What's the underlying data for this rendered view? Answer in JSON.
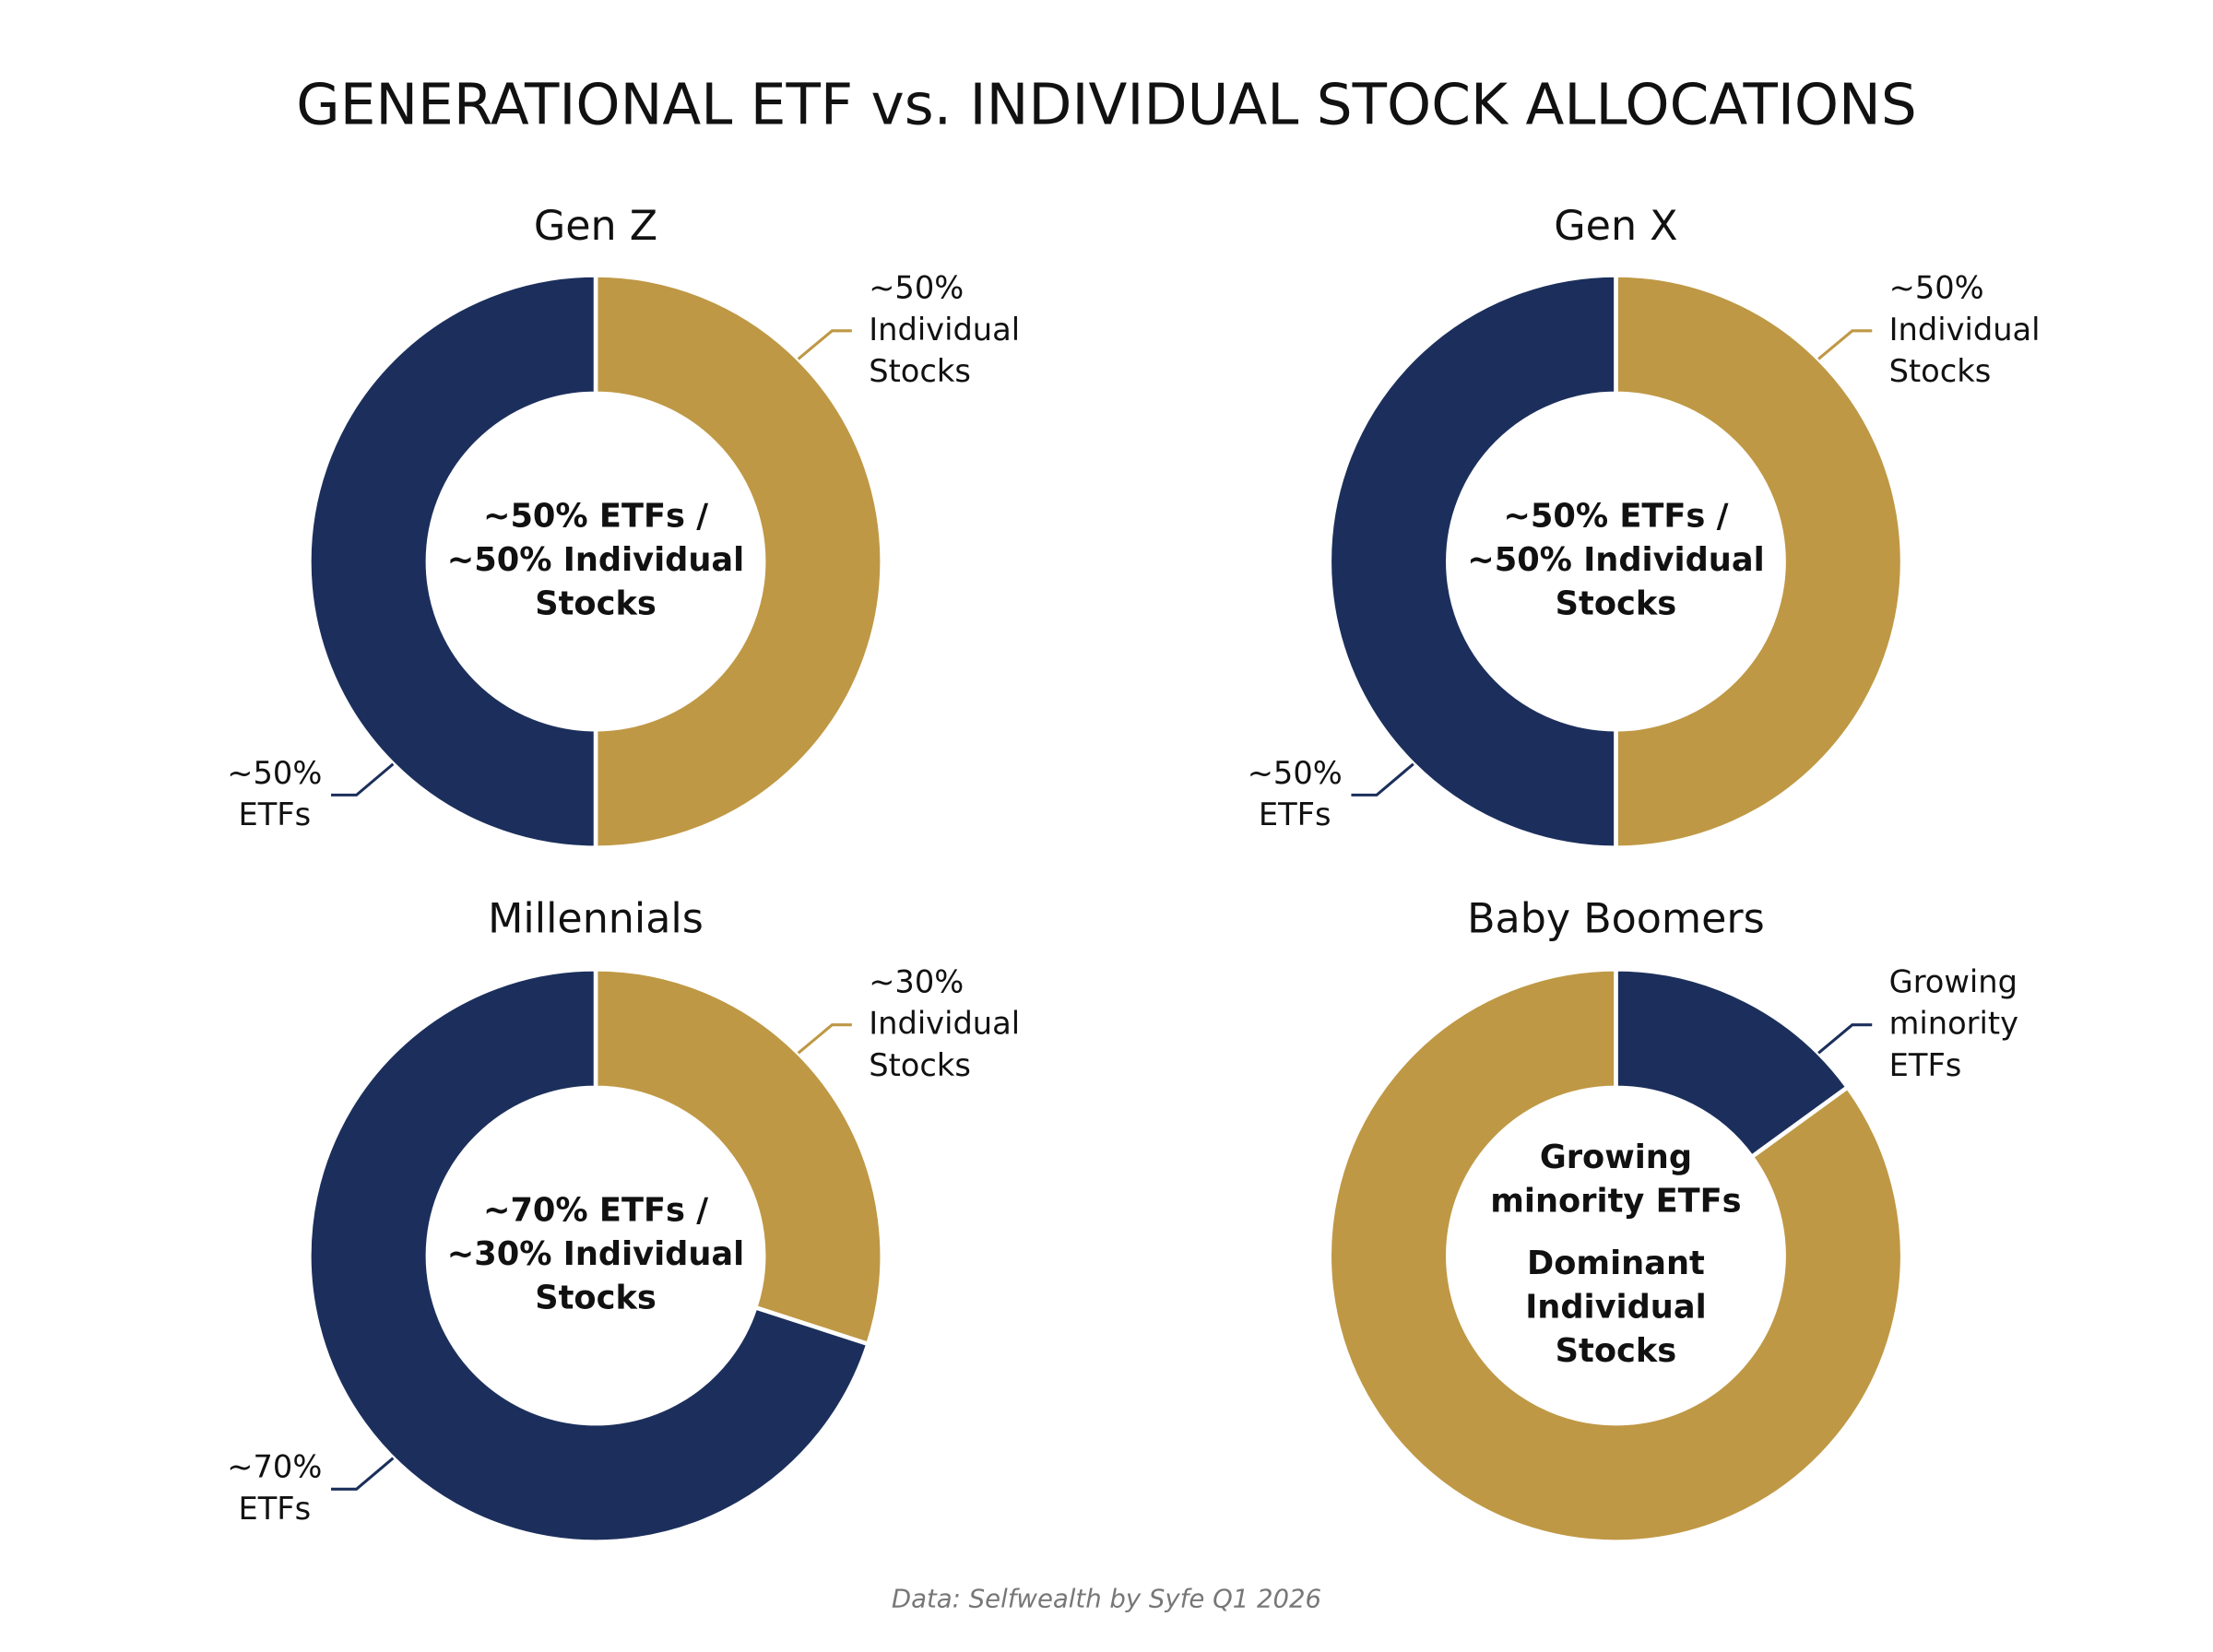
{
  "title": "GENERATIONAL ETF vs. INDIVIDUAL STOCK ALLOCATIONS",
  "source": "Data: Selfwealth by Syfe Q1 2026",
  "chart_data": [
    {
      "type": "donut",
      "title": "Gen Z",
      "categories": [
        "Individual Stocks",
        "ETFs"
      ],
      "values": [
        50,
        50
      ],
      "value_labels": [
        "~50%",
        "~50%"
      ],
      "colors": [
        "#bf9845",
        "#1c2f5c"
      ],
      "labeled_slices": [
        0,
        1
      ],
      "center_lines": [
        "~50% ETFs /",
        "~50% Individual",
        "Stocks"
      ]
    },
    {
      "type": "donut",
      "title": "Gen X",
      "categories": [
        "Individual Stocks",
        "ETFs"
      ],
      "values": [
        50,
        50
      ],
      "value_labels": [
        "~50%",
        "~50%"
      ],
      "colors": [
        "#bf9845",
        "#1c2f5c"
      ],
      "labeled_slices": [
        0,
        1
      ],
      "center_lines": [
        "~50% ETFs /",
        "~50% Individual",
        "Stocks"
      ]
    },
    {
      "type": "donut",
      "title": "Millennials",
      "categories": [
        "Individual Stocks",
        "ETFs"
      ],
      "values": [
        30,
        70
      ],
      "value_labels": [
        "~30%",
        "~70%"
      ],
      "colors": [
        "#bf9845",
        "#1c2f5c"
      ],
      "labeled_slices": [
        0,
        1
      ],
      "center_lines": [
        "~70% ETFs /",
        "~30% Individual",
        "Stocks"
      ]
    },
    {
      "type": "donut",
      "title": "Baby Boomers",
      "categories": [
        "Growing minority ETFs",
        "Dominant Individual Stocks"
      ],
      "values": [
        15,
        85
      ],
      "colors": [
        "#1c2f5c",
        "#bf9845"
      ],
      "labeled_slices": [
        0
      ],
      "center_lines": [
        "Growing",
        "minority ETFs",
        "Dominant",
        "Individual",
        "Stocks"
      ]
    }
  ]
}
